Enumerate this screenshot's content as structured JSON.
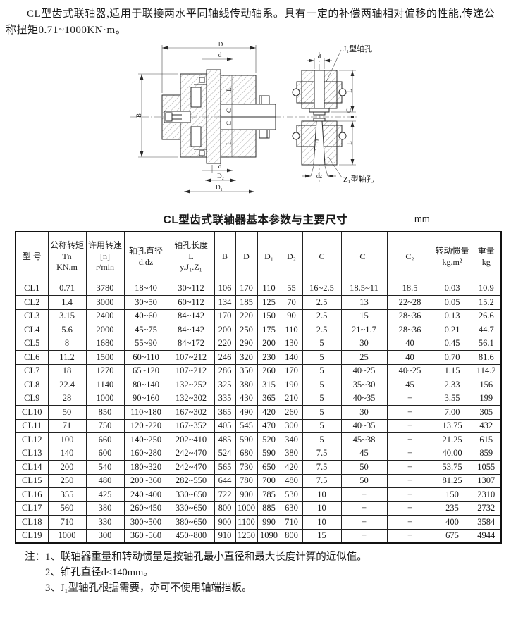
{
  "intro": {
    "text": "CL型齿式联轴器,适用于联接两水平同轴线传动轴系。具有一定的补偿两轴相对偏移的性能,传递公称扭矩0.71~1000KN·m。"
  },
  "diagram": {
    "labels": {
      "D": "D",
      "d_top": "d",
      "B": "B",
      "L": "L",
      "C": "C",
      "d_bottom": "d",
      "D2": "D₂",
      "D1": "D₁",
      "d_right": "d",
      "dz": "dz",
      "taper": "1:10",
      "j1_hole": "J₁型轴孔",
      "z1_hole": "Z₁型轴孔"
    }
  },
  "table": {
    "title": "CL型齿式联轴器基本参数与主要尺寸",
    "unit": "mm",
    "headers": [
      {
        "lines": [
          "型 号"
        ]
      },
      {
        "lines": [
          "公称转矩",
          "Tn",
          "KN.m"
        ]
      },
      {
        "lines": [
          "许用转速",
          "[n]",
          "r/min"
        ]
      },
      {
        "lines": [
          "轴孔直径",
          "d.dz"
        ]
      },
      {
        "lines": [
          "轴孔长度",
          "L",
          "y.J₁.Z₁"
        ]
      },
      {
        "lines": [
          "B"
        ]
      },
      {
        "lines": [
          "D"
        ]
      },
      {
        "lines": [
          "D₁"
        ]
      },
      {
        "lines": [
          "D₂"
        ]
      },
      {
        "lines": [
          "C"
        ]
      },
      {
        "lines": [
          "C₁"
        ]
      },
      {
        "lines": [
          "C₂"
        ]
      },
      {
        "lines": [
          "转动惯量",
          "kg.m²"
        ]
      },
      {
        "lines": [
          "重量",
          "kg"
        ]
      }
    ],
    "rows": [
      [
        "CL1",
        "0.71",
        "3780",
        "18~40",
        "30~112",
        "106",
        "170",
        "110",
        "55",
        "16~2.5",
        "18.5~11",
        "18.5",
        "0.03",
        "10.9"
      ],
      [
        "CL2",
        "1.4",
        "3000",
        "30~50",
        "60~112",
        "134",
        "185",
        "125",
        "70",
        "2.5",
        "13",
        "22~28",
        "0.05",
        "15.2"
      ],
      [
        "CL3",
        "3.15",
        "2400",
        "40~60",
        "84~142",
        "170",
        "220",
        "150",
        "90",
        "2.5",
        "15",
        "28~36",
        "0.13",
        "26.6"
      ],
      [
        "CL4",
        "5.6",
        "2000",
        "45~75",
        "84~142",
        "200",
        "250",
        "175",
        "110",
        "2.5",
        "21~1.7",
        "28~36",
        "0.21",
        "44.7"
      ],
      [
        "CL5",
        "8",
        "1680",
        "55~90",
        "84~172",
        "220",
        "290",
        "200",
        "130",
        "5",
        "30",
        "40",
        "0.45",
        "56.1"
      ],
      [
        "CL6",
        "11.2",
        "1500",
        "60~110",
        "107~212",
        "246",
        "320",
        "230",
        "140",
        "5",
        "25",
        "40",
        "0.70",
        "81.6"
      ],
      [
        "CL7",
        "18",
        "1270",
        "65~120",
        "107~212",
        "286",
        "350",
        "260",
        "170",
        "5",
        "40~25",
        "40~25",
        "1.15",
        "114.2"
      ],
      [
        "CL8",
        "22.4",
        "1140",
        "80~140",
        "132~252",
        "325",
        "380",
        "315",
        "190",
        "5",
        "35~30",
        "45",
        "2.33",
        "156"
      ],
      [
        "CL9",
        "28",
        "1000",
        "90~160",
        "132~302",
        "335",
        "430",
        "365",
        "210",
        "5",
        "40~35",
        "−",
        "3.55",
        "199"
      ],
      [
        "CL10",
        "50",
        "850",
        "110~180",
        "167~302",
        "365",
        "490",
        "420",
        "260",
        "5",
        "30",
        "−",
        "7.00",
        "305"
      ],
      [
        "CL11",
        "71",
        "750",
        "120~220",
        "167~352",
        "405",
        "545",
        "470",
        "300",
        "5",
        "40~35",
        "−",
        "13.75",
        "432"
      ],
      [
        "CL12",
        "100",
        "660",
        "140~250",
        "202~410",
        "485",
        "590",
        "520",
        "340",
        "5",
        "45~38",
        "−",
        "21.25",
        "615"
      ],
      [
        "CL13",
        "140",
        "600",
        "160~280",
        "242~470",
        "524",
        "680",
        "590",
        "380",
        "7.5",
        "45",
        "−",
        "40.00",
        "859"
      ],
      [
        "CL14",
        "200",
        "540",
        "180~320",
        "242~470",
        "565",
        "730",
        "650",
        "420",
        "7.5",
        "50",
        "−",
        "53.75",
        "1055"
      ],
      [
        "CL15",
        "250",
        "480",
        "200~360",
        "282~550",
        "644",
        "780",
        "700",
        "480",
        "7.5",
        "50",
        "−",
        "81.25",
        "1307"
      ],
      [
        "CL16",
        "355",
        "425",
        "240~400",
        "330~650",
        "722",
        "900",
        "785",
        "530",
        "10",
        "−",
        "−",
        "150",
        "2310"
      ],
      [
        "CL17",
        "560",
        "380",
        "260~450",
        "330~650",
        "800",
        "1000",
        "885",
        "630",
        "10",
        "−",
        "−",
        "235",
        "2732"
      ],
      [
        "CL18",
        "710",
        "330",
        "300~500",
        "380~650",
        "900",
        "1100",
        "990",
        "710",
        "10",
        "−",
        "−",
        "400",
        "3584"
      ],
      [
        "CL19",
        "1000",
        "300",
        "360~560",
        "450~800",
        "910",
        "1250",
        "1090",
        "800",
        "15",
        "−",
        "−",
        "675",
        "4944"
      ]
    ]
  },
  "notes": {
    "prefix": "注：",
    "items": [
      "1、联轴器重量和转动惯量是按轴孔最小直径和最大长度计算的近似值。",
      "2、锥孔直径d≤140mm。",
      "3、J₁型轴孔根据需要，亦可不使用轴端挡板。"
    ]
  }
}
